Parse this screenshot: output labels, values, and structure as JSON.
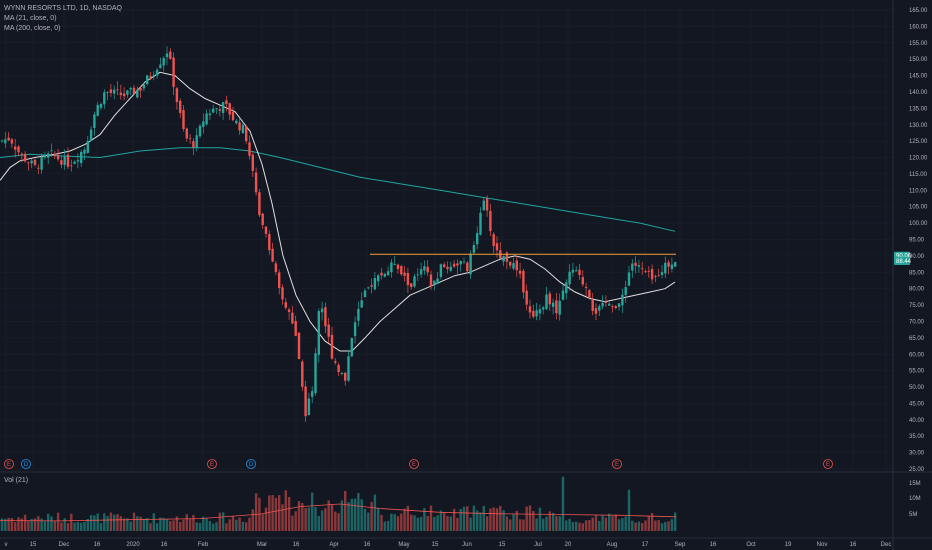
{
  "legend": {
    "symbol": "WYNN RESORTS LTD, 1D, NASDAQ",
    "ma1": "MA (21, close, 0)",
    "ma2": "MA (200, close, 0)",
    "volume": "Vol (21)"
  },
  "colors": {
    "background": "#131722",
    "up": "#26a69a",
    "down": "#ef5350",
    "ma21": "#e0e0e0",
    "ma200": "#20a5a0",
    "resistance": "#f0a030",
    "grid": "#1e222d"
  },
  "price_tags": {
    "current": "90.06",
    "ma": "88.44"
  },
  "chart_data": {
    "type": "candlestick",
    "title": "WYNN RESORTS LTD, 1D, NASDAQ",
    "y_ticks": [
      "165.00",
      "160.00",
      "155.00",
      "150.00",
      "145.00",
      "140.00",
      "135.00",
      "130.00",
      "125.00",
      "120.00",
      "115.00",
      "110.00",
      "105.00",
      "100.00",
      "95.00",
      "90.00",
      "85.00",
      "80.00",
      "75.00",
      "70.00",
      "65.00",
      "60.00",
      "55.00",
      "50.00",
      "45.00",
      "40.00",
      "35.00",
      "30.00",
      "25.00"
    ],
    "ylim": [
      25,
      165
    ],
    "x_ticks": [
      "v",
      "15",
      "Dec",
      "16",
      "2020",
      "16",
      "Feb",
      "Mar",
      "16",
      "Apr",
      "16",
      "May",
      "15",
      "Jun",
      "15",
      "Jul",
      "20",
      "Aug",
      "17",
      "Sep",
      "16",
      "Oct",
      "19",
      "Nov",
      "16",
      "Dec"
    ],
    "volume_ticks": [
      "15M",
      "10M",
      "5M"
    ],
    "resistance_level": 90.5,
    "earnings_markers": [
      "E",
      "D",
      "E",
      "D",
      "E",
      "E",
      "E"
    ],
    "series": [
      {
        "name": "MA (21, close, 0)",
        "points": [
          [
            0,
            113
          ],
          [
            10,
            117
          ],
          [
            20,
            119
          ],
          [
            35,
            120
          ],
          [
            55,
            121
          ],
          [
            70,
            122
          ],
          [
            85,
            124
          ],
          [
            100,
            127
          ],
          [
            115,
            133
          ],
          [
            130,
            138
          ],
          [
            145,
            143
          ],
          [
            160,
            146
          ],
          [
            175,
            145
          ],
          [
            190,
            141
          ],
          [
            205,
            138
          ],
          [
            220,
            136
          ],
          [
            235,
            134
          ],
          [
            250,
            128
          ],
          [
            262,
            118
          ],
          [
            272,
            106
          ],
          [
            283,
            90
          ],
          [
            296,
            78
          ],
          [
            310,
            70
          ],
          [
            325,
            64
          ],
          [
            340,
            61
          ],
          [
            352,
            61
          ],
          [
            365,
            65
          ],
          [
            380,
            70
          ],
          [
            395,
            74
          ],
          [
            410,
            78
          ],
          [
            425,
            80
          ],
          [
            440,
            82
          ],
          [
            455,
            84
          ],
          [
            470,
            85
          ],
          [
            485,
            87
          ],
          [
            500,
            89
          ],
          [
            515,
            90
          ],
          [
            530,
            89
          ],
          [
            545,
            86
          ],
          [
            560,
            82
          ],
          [
            575,
            79
          ],
          [
            590,
            77
          ],
          [
            605,
            76
          ],
          [
            620,
            77
          ],
          [
            635,
            78
          ],
          [
            650,
            79
          ],
          [
            665,
            80
          ],
          [
            675,
            82
          ]
        ]
      },
      {
        "name": "MA (200, close, 0)",
        "points": [
          [
            0,
            120
          ],
          [
            30,
            121
          ],
          [
            60,
            120.5
          ],
          [
            100,
            120
          ],
          [
            140,
            122
          ],
          [
            180,
            123
          ],
          [
            220,
            123
          ],
          [
            250,
            122
          ],
          [
            280,
            120
          ],
          [
            320,
            117
          ],
          [
            360,
            114
          ],
          [
            400,
            112
          ],
          [
            440,
            110
          ],
          [
            480,
            108
          ],
          [
            520,
            106
          ],
          [
            560,
            104
          ],
          [
            600,
            102
          ],
          [
            640,
            100
          ],
          [
            675,
            97.5
          ]
        ]
      }
    ]
  }
}
